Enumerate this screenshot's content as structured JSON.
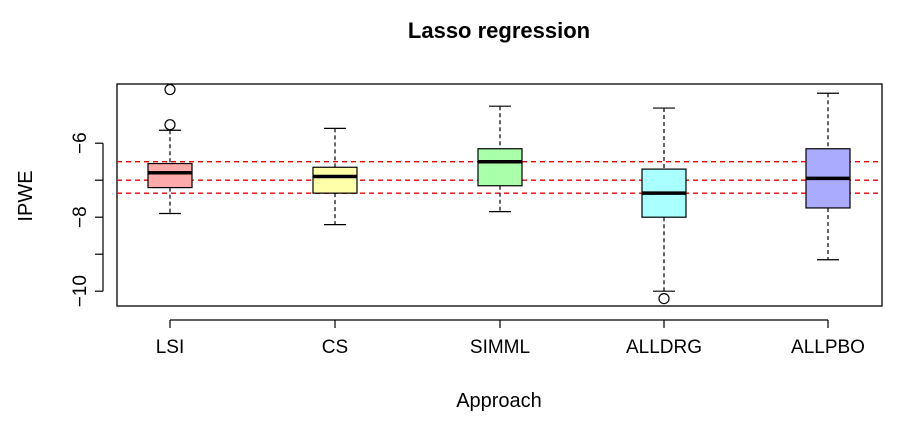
{
  "chart_data": {
    "type": "box",
    "title": "Lasso regression",
    "xlabel": "Approach",
    "ylabel": "IPWE",
    "categories": [
      "LSI",
      "CS",
      "SIMML",
      "ALLDRG",
      "ALLPBO"
    ],
    "yticks": [
      "-10",
      "-8",
      "-6"
    ],
    "ylim": [
      -10.4,
      -4.4
    ],
    "grid": false,
    "boxes": [
      {
        "name": "LSI",
        "whisker_low": -7.9,
        "q1": -7.2,
        "median": -6.8,
        "q3": -6.55,
        "whisker_high": -5.65,
        "outliers": [
          -4.55,
          -5.5
        ],
        "color": "#ffaaaa"
      },
      {
        "name": "CS",
        "whisker_low": -8.2,
        "q1": -7.35,
        "median": -6.9,
        "q3": -6.65,
        "whisker_high": -5.6,
        "outliers": [],
        "color": "#ffffaa"
      },
      {
        "name": "SIMML",
        "whisker_low": -7.85,
        "q1": -7.15,
        "median": -6.5,
        "q3": -6.15,
        "whisker_high": -5.0,
        "outliers": [],
        "color": "#aaffaa"
      },
      {
        "name": "ALLDRG",
        "whisker_low": -10.0,
        "q1": -8.0,
        "median": -7.35,
        "q3": -6.7,
        "whisker_high": -5.05,
        "outliers": [
          -10.2
        ],
        "color": "#aaffff"
      },
      {
        "name": "ALLPBO",
        "whisker_low": -9.15,
        "q1": -7.75,
        "median": -6.95,
        "q3": -6.15,
        "whisker_high": -4.65,
        "outliers": [],
        "color": "#aaaaff"
      }
    ],
    "reference_lines": [
      {
        "y": -6.5,
        "color": "#ee0000"
      },
      {
        "y": -7.0,
        "color": "#ee0000"
      },
      {
        "y": -7.35,
        "color": "#ee0000"
      }
    ]
  }
}
